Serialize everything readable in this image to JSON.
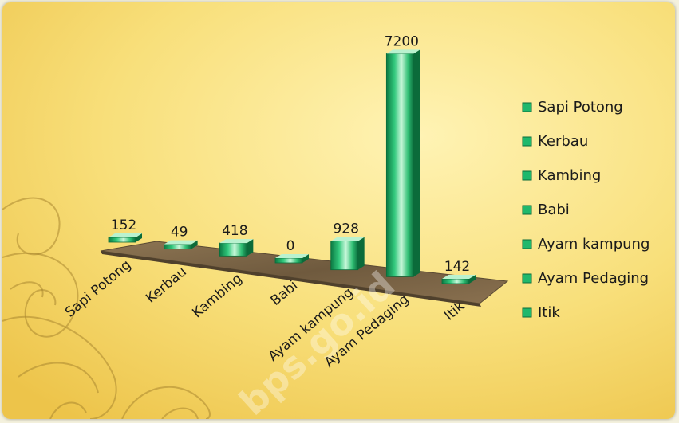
{
  "chart_data": {
    "type": "bar",
    "categories": [
      "Sapi Potong",
      "Kerbau",
      "Kambing",
      "Babi",
      "Ayam kampung",
      "Ayam Pedaging",
      "Itik"
    ],
    "values": [
      152,
      49,
      418,
      0,
      928,
      7200,
      142
    ],
    "value_labels": [
      "152",
      "49",
      "418",
      "0",
      "928",
      "7200",
      "142"
    ],
    "legend": [
      "Sapi Potong",
      "Kerbau",
      "Kambing",
      "Babi",
      "Ayam kampung",
      "Ayam Pedaging",
      "Itik"
    ],
    "legend_position": "right",
    "title": "",
    "xlabel": "",
    "ylabel": "",
    "ylim": [
      0,
      7200
    ],
    "grid": false
  },
  "watermark": "bps.go.id",
  "colors": {
    "bar": "#1fb86c",
    "bar_light": "#b9f2cf",
    "bar_dark": "#0b6b3a",
    "background": "#f9e489",
    "floor": "#7a6446"
  }
}
